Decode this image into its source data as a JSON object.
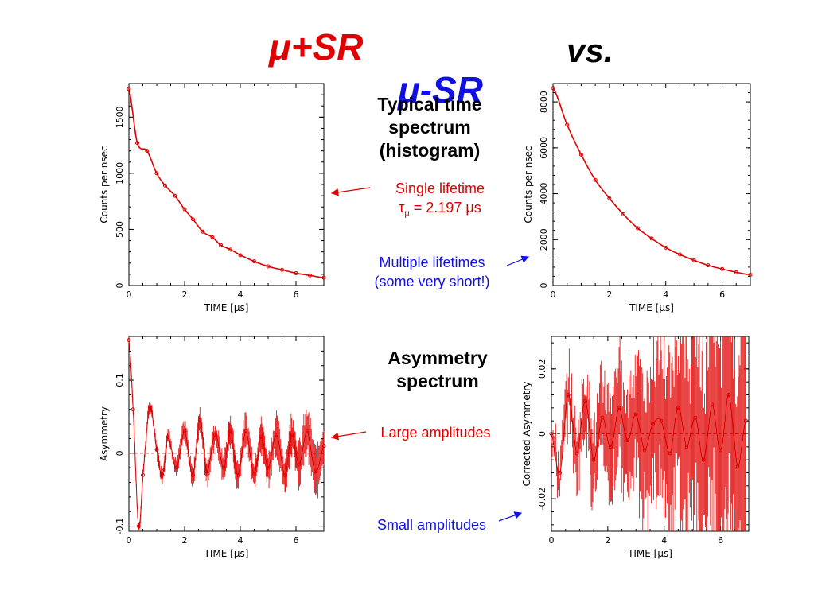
{
  "header": {
    "mu_plus": "μ+SR",
    "vs": "vs.",
    "mu_minus": "μ-SR"
  },
  "annotations": {
    "typical_line1": "Typical time",
    "typical_line2": "spectrum",
    "typical_line3": "(histogram)",
    "single_line1": "Single lifetime",
    "single_tau": "τ",
    "single_sub": "μ",
    "single_rest": " = 2.197 μs",
    "multiple_line1": "Multiple lifetimes",
    "multiple_line2": "(some very short!)",
    "asym_line1": "Asymmetry",
    "asym_line2": "spectrum",
    "large": "Large amplitudes",
    "small": "Small amplitudes"
  },
  "colors": {
    "red": "#e00000",
    "blue": "#1010e0"
  },
  "chart_data": [
    {
      "id": "plus_histogram",
      "type": "scatter",
      "ylabel": "Counts per nsec",
      "xlabel": "TIME [μs]",
      "xlim": [
        0,
        7
      ],
      "ylim": [
        0,
        1800
      ],
      "xticks": [
        0,
        2,
        4,
        6
      ],
      "yticks": [
        0,
        500,
        1000,
        1500
      ],
      "series": [
        {
          "x": [
            0,
            0.3,
            0.65,
            1.0,
            1.3,
            1.65,
            2.0,
            2.3,
            2.65,
            3.0,
            3.3,
            3.65,
            4.0,
            4.5,
            5.0,
            5.5,
            6.0,
            6.5,
            7.0
          ],
          "values": [
            1750,
            1270,
            1200,
            1000,
            890,
            800,
            680,
            590,
            480,
            430,
            360,
            320,
            270,
            215,
            170,
            140,
            110,
            90,
            70
          ]
        }
      ]
    },
    {
      "id": "minus_histogram",
      "type": "scatter",
      "ylabel": "Counts per nsec",
      "xlabel": "TIME [μs]",
      "xlim": [
        0,
        7
      ],
      "ylim": [
        0,
        8800
      ],
      "xticks": [
        0,
        2,
        4,
        6
      ],
      "yticks": [
        0,
        2000,
        4000,
        6000,
        8000
      ],
      "series": [
        {
          "x": [
            0,
            0.5,
            1.0,
            1.5,
            2.0,
            2.5,
            3.0,
            3.5,
            4.0,
            4.5,
            5.0,
            5.5,
            6.0,
            6.5,
            7.0
          ],
          "values": [
            8600,
            7000,
            5700,
            4600,
            3800,
            3100,
            2500,
            2050,
            1650,
            1350,
            1100,
            880,
            720,
            580,
            470
          ]
        }
      ]
    },
    {
      "id": "plus_asymmetry",
      "type": "scatter",
      "ylabel": "Asymmetry",
      "xlabel": "TIME [μs]",
      "xlim": [
        0,
        7
      ],
      "ylim": [
        -0.107,
        0.16
      ],
      "xticks": [
        0,
        2,
        4,
        6
      ],
      "yticks": [
        -0.1,
        0,
        0.1
      ],
      "series": [
        {
          "x": [
            0,
            0.15,
            0.35,
            0.5,
            0.75,
            1.0,
            1.2,
            1.4,
            1.7,
            2.0,
            2.3,
            2.55,
            2.8,
            3.1,
            3.4,
            3.65,
            3.9,
            4.2,
            4.5,
            4.75,
            5.0,
            5.3,
            5.6,
            5.85,
            6.1,
            6.4,
            6.7,
            7.0
          ],
          "values": [
            0.155,
            0.06,
            -0.1,
            -0.03,
            0.063,
            0.005,
            -0.03,
            0.022,
            -0.02,
            0.03,
            -0.03,
            0.045,
            -0.025,
            0.025,
            -0.02,
            0.03,
            -0.03,
            0.03,
            -0.028,
            0.022,
            -0.02,
            0.025,
            -0.03,
            0.025,
            -0.015,
            0.03,
            -0.025,
            0.01
          ]
        }
      ]
    },
    {
      "id": "minus_asymmetry",
      "type": "scatter",
      "ylabel": "Corrected Asymmetry",
      "xlabel": "TIME [μs]",
      "xlim": [
        0,
        7
      ],
      "ylim": [
        -0.03,
        0.03
      ],
      "xticks": [
        0,
        2,
        4,
        6
      ],
      "yticks": [
        -0.02,
        0,
        0.02
      ],
      "series": [
        {
          "x": [
            0,
            0.3,
            0.6,
            0.9,
            1.2,
            1.5,
            1.8,
            2.1,
            2.4,
            2.7,
            3.0,
            3.3,
            3.6,
            3.9,
            4.2,
            4.5,
            4.8,
            5.1,
            5.4,
            5.7,
            6.0,
            6.3,
            6.6,
            6.9
          ],
          "values": [
            0,
            -0.012,
            0.012,
            -0.006,
            0.01,
            -0.008,
            0.005,
            -0.004,
            0.008,
            -0.002,
            0.006,
            -0.005,
            0.003,
            0.004,
            -0.006,
            0.008,
            -0.004,
            0.005,
            -0.008,
            0.009,
            -0.005,
            0.012,
            -0.01,
            0.004
          ]
        }
      ]
    }
  ]
}
